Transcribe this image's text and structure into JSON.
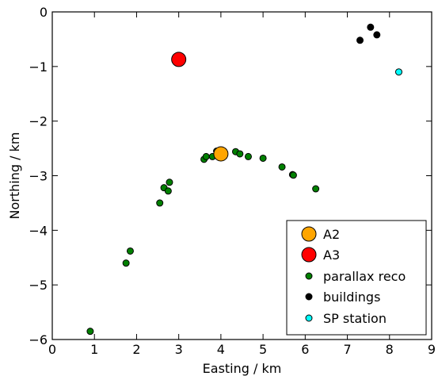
{
  "chart_data": {
    "type": "scatter",
    "title": "",
    "xlabel": "Easting / km",
    "ylabel": "Northing / km",
    "xlim": [
      0,
      9
    ],
    "ylim": [
      -6,
      0
    ],
    "x_ticks": [
      0,
      1,
      2,
      3,
      4,
      5,
      6,
      7,
      8,
      9
    ],
    "y_ticks": [
      0,
      -1,
      -2,
      -3,
      -4,
      -5,
      -6
    ],
    "y_tick_labels": [
      "0",
      "−1",
      "−2",
      "−3",
      "−4",
      "−5",
      "−6"
    ],
    "grid": false,
    "legend_position": "bottom-right",
    "series": [
      {
        "name": "A2",
        "color": "#ffa500",
        "marker": "large-circle",
        "points": [
          [
            4.0,
            -2.6
          ]
        ]
      },
      {
        "name": "A3",
        "color": "#ff0000",
        "marker": "large-circle",
        "points": [
          [
            3.0,
            -0.87
          ]
        ]
      },
      {
        "name": "parallax reco",
        "color": "#008000",
        "marker": "circle",
        "points": [
          [
            0.9,
            -5.85
          ],
          [
            1.75,
            -4.6
          ],
          [
            1.85,
            -4.38
          ],
          [
            2.55,
            -3.5
          ],
          [
            2.65,
            -3.22
          ],
          [
            2.75,
            -3.28
          ],
          [
            2.78,
            -3.12
          ],
          [
            3.6,
            -2.7
          ],
          [
            3.65,
            -2.65
          ],
          [
            3.8,
            -2.65
          ],
          [
            3.9,
            -2.55
          ],
          [
            4.35,
            -2.56
          ],
          [
            4.45,
            -2.6
          ],
          [
            4.65,
            -2.65
          ],
          [
            5.0,
            -2.68
          ],
          [
            5.45,
            -2.84
          ],
          [
            5.7,
            -2.98
          ],
          [
            5.72,
            -2.99
          ],
          [
            6.25,
            -3.24
          ]
        ]
      },
      {
        "name": "buildings",
        "color": "#000000",
        "marker": "circle",
        "points": [
          [
            7.3,
            -0.52
          ],
          [
            7.55,
            -0.28
          ],
          [
            7.7,
            -0.42
          ]
        ]
      },
      {
        "name": "SP station",
        "color": "#00ffff",
        "marker": "circle",
        "points": [
          [
            8.22,
            -1.1
          ]
        ]
      }
    ]
  }
}
